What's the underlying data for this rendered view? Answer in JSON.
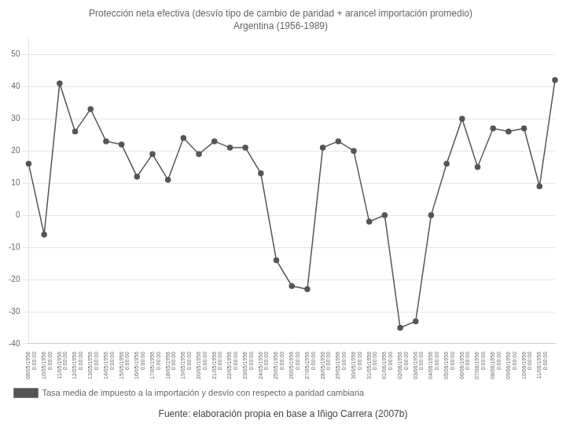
{
  "chart_data": {
    "type": "line",
    "title": "Protección neta efectiva (desvío tipo de cambio de paridad + arancel importación promedio)",
    "subtitle": "Argentina (1956-1989)",
    "annotations": [
      "Fuente: elaboración propia en base a Iñigo Carrera (2007b)"
    ],
    "categories": [
      "08/05/1956\n0:00:00",
      "10/05/1956\n0:00:00",
      "11/05/1956\n0:00:00",
      "12/05/1956\n0:00:00",
      "13/05/1956\n0:00:00",
      "14/05/1956\n0:00:00",
      "15/05/1956\n0:00:00",
      "16/05/1956\n0:00:00",
      "17/05/1956\n0:00:00",
      "18/05/1956\n0:00:00",
      "19/05/1956\n0:00:00",
      "20/05/1956\n0:00:00",
      "21/05/1956\n0:00:00",
      "22/05/1956\n0:00:00",
      "23/05/1956\n0:00:00",
      "24/05/1956\n0:00:00",
      "25/05/1956\n0:00:00",
      "26/05/1956\n0:00:00",
      "27/05/1956\n0:00:00",
      "28/05/1956\n0:00:00",
      "29/05/1956\n0:00:00",
      "30/05/1956\n0:00:00",
      "31/05/1956\n0:00:00",
      "01/06/1956\n0:00:00",
      "02/06/1956\n0:00:00",
      "03/06/1956\n0:00:00",
      "04/06/1956\n0:00:00",
      "05/06/1956\n0:00:00",
      "06/06/1956\n0:00:00",
      "07/06/1956\n0:00:00",
      "08/06/1956\n0:00:00",
      "09/06/1956\n0:00:00",
      "10/06/1956\n0:00:00",
      "11/06/1956\n0:00:00",
      null
    ],
    "series": [
      {
        "name": "Tasa media de impuesto a la importación y desvío con respecto a paridad cambiaria",
        "color": "#555555",
        "marker": "circle",
        "values": [
          16,
          -6,
          41,
          26,
          33,
          23,
          22,
          12,
          19,
          11,
          24,
          19,
          23,
          21,
          21,
          13,
          -14,
          -22,
          -23,
          21,
          23,
          20,
          -2,
          0,
          -35,
          -33,
          0,
          16,
          30,
          15,
          27,
          26,
          27,
          9,
          42
        ]
      }
    ],
    "ylim": [
      -40,
      55
    ],
    "yticks": [
      50,
      40,
      30,
      20,
      10,
      0,
      -10,
      -20,
      -30,
      -40
    ],
    "grid": "y",
    "legend": "lower left"
  }
}
